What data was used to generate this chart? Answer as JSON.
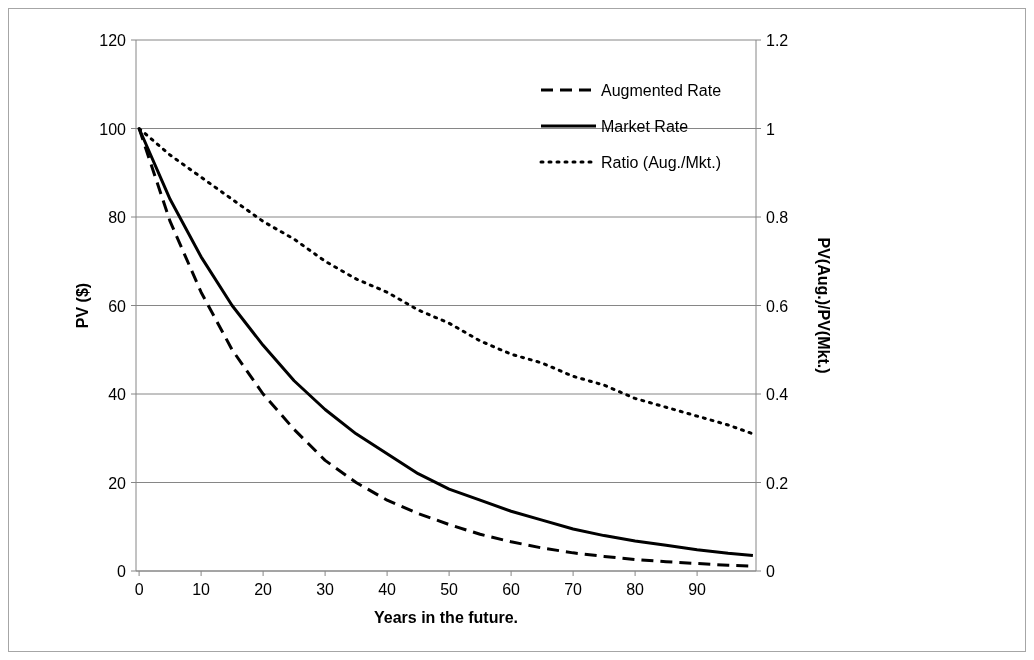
{
  "chart_data": {
    "type": "line",
    "xlabel": "Years in the future.",
    "ylabel": "PV ($)",
    "y2label": "PV(Aug.)/PV(Mkt.)",
    "x": [
      0,
      5,
      10,
      15,
      20,
      25,
      30,
      35,
      40,
      45,
      50,
      55,
      60,
      65,
      70,
      75,
      80,
      85,
      90,
      95,
      99
    ],
    "xlim": [
      -0.5,
      99.5
    ],
    "xticks": [
      0,
      10,
      20,
      30,
      40,
      50,
      60,
      70,
      80,
      90
    ],
    "ylim": [
      0,
      120
    ],
    "yticks": [
      0,
      20,
      40,
      60,
      80,
      100,
      120
    ],
    "y2lim": [
      0,
      1.2
    ],
    "y2ticks": [
      0,
      0.2,
      0.4,
      0.6,
      0.8,
      1,
      1.2
    ],
    "grid": "y",
    "legend": "top right",
    "marker": "none",
    "series": [
      {
        "name": "Augmented Rate",
        "color": "#000000",
        "line_style": "dashed",
        "values": [
          100,
          79,
          63,
          50,
          40,
          32,
          25,
          20,
          16,
          13,
          10.5,
          8.3,
          6.6,
          5.2,
          4.1,
          3.3,
          2.6,
          2.1,
          1.7,
          1.3,
          1.1
        ]
      },
      {
        "name": "Market Rate",
        "color": "#000000",
        "line_style": "solid",
        "values": [
          100,
          84,
          71,
          60,
          51,
          43,
          36.5,
          31,
          26.5,
          22,
          18.5,
          16,
          13.5,
          11.5,
          9.5,
          8,
          6.8,
          5.8,
          4.8,
          4,
          3.5
        ]
      },
      {
        "name": "Ratio (Aug./Mkt.)",
        "color": "#000000",
        "line_style": "dotted",
        "axis": "y2",
        "values": [
          1,
          0.94,
          0.89,
          0.84,
          0.79,
          0.75,
          0.7,
          0.66,
          0.63,
          0.59,
          0.56,
          0.52,
          0.49,
          0.47,
          0.44,
          0.42,
          0.39,
          0.37,
          0.35,
          0.33,
          0.31
        ]
      }
    ]
  }
}
